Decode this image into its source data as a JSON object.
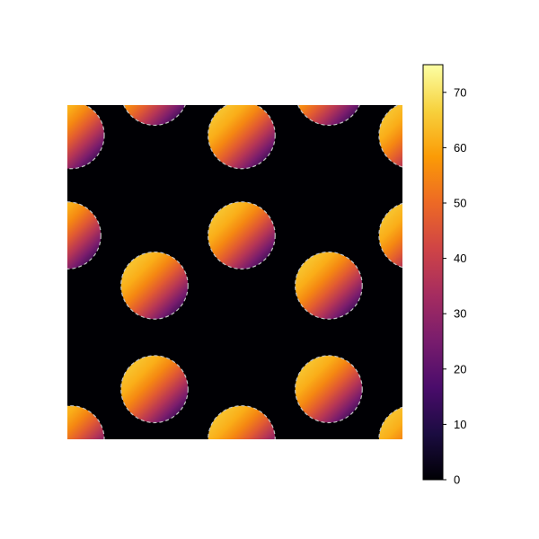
{
  "chart_data": {
    "type": "heatmap",
    "title": "",
    "xlabel": "",
    "ylabel": "",
    "axes_visible": false,
    "background_value": 0,
    "colormap": "inferno",
    "colormap_stops": [
      "#000004",
      "#1b0c41",
      "#4a0c6b",
      "#781c6d",
      "#a52c60",
      "#cf4446",
      "#ed6925",
      "#fb9b06",
      "#f7d13d",
      "#fcffa4"
    ],
    "circle_outline": {
      "color": "#c0c0c0",
      "style": "dashed"
    },
    "circle_gradient": {
      "max_value": 64,
      "min_value": 12,
      "direction": "top-left to bottom-right"
    },
    "xlim": [
      0,
      10
    ],
    "ylim": [
      0,
      10
    ],
    "circles": [
      {
        "cx": 0.1,
        "cy": 9.1,
        "r": 1.0
      },
      {
        "cx": 2.6,
        "cy": 10.4,
        "r": 1.0
      },
      {
        "cx": 5.2,
        "cy": 9.1,
        "r": 1.0
      },
      {
        "cx": 7.8,
        "cy": 10.4,
        "r": 1.0
      },
      {
        "cx": 10.3,
        "cy": 9.1,
        "r": 1.0
      },
      {
        "cx": 0.0,
        "cy": 6.1,
        "r": 1.0
      },
      {
        "cx": 5.2,
        "cy": 6.1,
        "r": 1.0
      },
      {
        "cx": 10.3,
        "cy": 6.1,
        "r": 1.0
      },
      {
        "cx": 2.6,
        "cy": 4.6,
        "r": 1.0
      },
      {
        "cx": 7.8,
        "cy": 4.6,
        "r": 1.0
      },
      {
        "cx": 2.6,
        "cy": 1.5,
        "r": 1.0
      },
      {
        "cx": 7.8,
        "cy": 1.5,
        "r": 1.0
      },
      {
        "cx": 0.1,
        "cy": 0.0,
        "r": 1.0
      },
      {
        "cx": 5.2,
        "cy": 0.0,
        "r": 1.0
      },
      {
        "cx": 10.3,
        "cy": 0.0,
        "r": 1.0
      }
    ],
    "colorbar": {
      "range": [
        0,
        75
      ],
      "ticks": [
        0,
        10,
        20,
        30,
        40,
        50,
        60,
        70
      ],
      "tick_labels": [
        "0",
        "10",
        "20",
        "30",
        "40",
        "50",
        "60",
        "70"
      ]
    }
  }
}
